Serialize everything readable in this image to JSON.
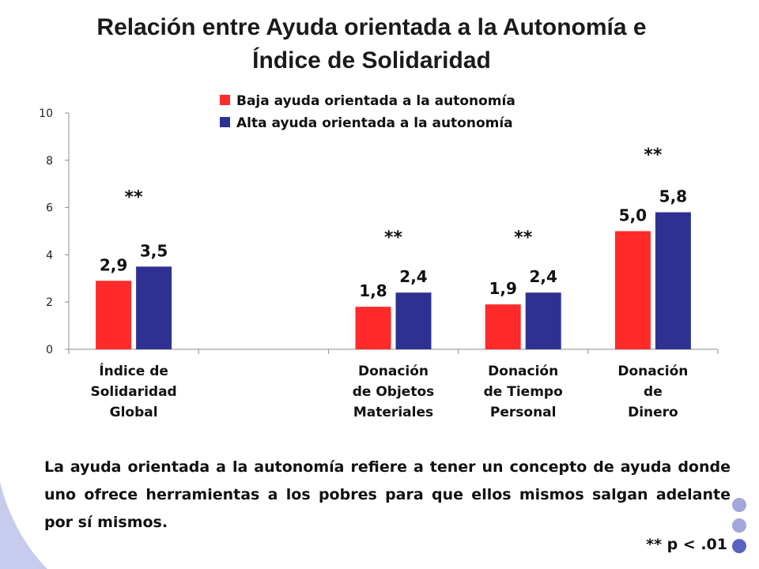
{
  "page": {
    "title_line1": "Relación entre Ayuda orientada a la Autonomía e",
    "title_line2": "Índice de Solidaridad",
    "caption": "La ayuda orientada a la autonomía refiere a tener un concepto de ayuda donde uno ofrece herramientas a los pobres para que ellos mismos salgan adelante por sí mismos.",
    "footnote": "** p < .01"
  },
  "colors": {
    "baja": "#ff2a2a",
    "alta": "#2e3192",
    "deco_light": "#a3a7d9",
    "deco_dark": "#5a62c2",
    "swoosh": "#c7cbee"
  },
  "chart_data": {
    "type": "bar",
    "title": "Relación entre Ayuda orientada a la Autonomía e Índice de Solidaridad",
    "xlabel": "",
    "ylabel": "",
    "ylim": [
      0,
      10
    ],
    "yticks": [
      0,
      2,
      4,
      6,
      8,
      10
    ],
    "grid": false,
    "legend_position": "top",
    "categories": [
      [
        "Índice de",
        "Solidaridad",
        "Global"
      ],
      [],
      [
        "Donación",
        "de Objetos",
        "Materiales"
      ],
      [
        "Donación",
        "de Tiempo",
        "Personal"
      ],
      [
        "Donación",
        "de",
        "Dinero"
      ]
    ],
    "series": [
      {
        "name": "Baja ayuda orientada a la autonomía",
        "values": [
          2.9,
          null,
          1.8,
          1.9,
          5.0
        ],
        "labels": [
          "2,9",
          "",
          "1,8",
          "1,9",
          "5,0"
        ]
      },
      {
        "name": "Alta ayuda orientada a la autonomía",
        "values": [
          3.5,
          null,
          2.4,
          2.4,
          5.8
        ],
        "labels": [
          "3,5",
          "",
          "2,4",
          "2,4",
          "5,8"
        ]
      }
    ],
    "annotations": [
      {
        "category": 0,
        "text": "**",
        "y": 6.2
      },
      {
        "category": 2,
        "text": "**",
        "y": 4.5
      },
      {
        "category": 3,
        "text": "**",
        "y": 4.5
      },
      {
        "category": 4,
        "text": "**",
        "y": 8.0
      }
    ]
  }
}
